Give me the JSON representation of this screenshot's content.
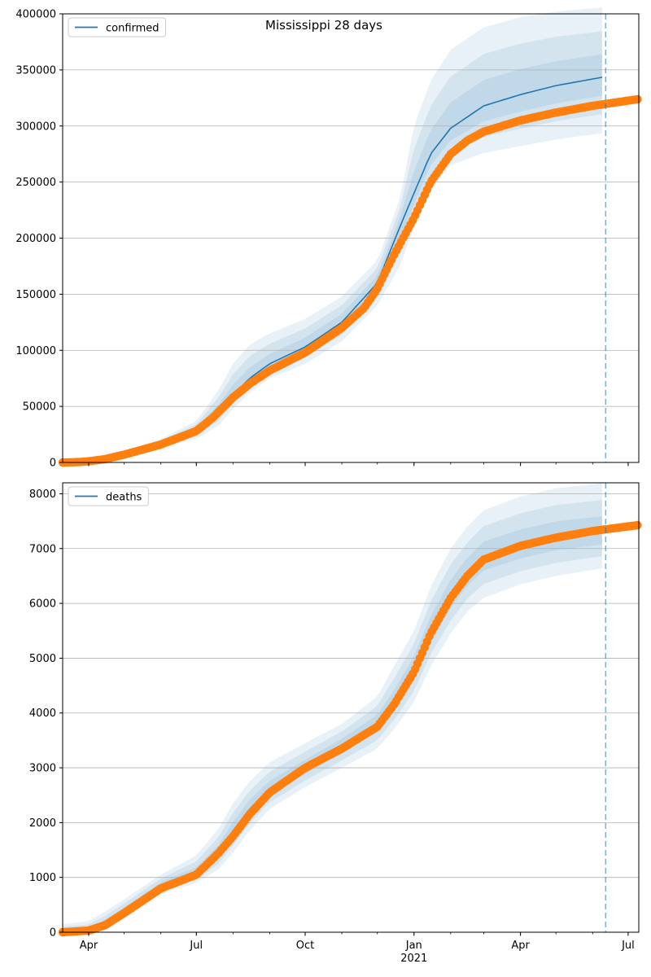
{
  "figure": {
    "title": "Mississippi 28 days"
  },
  "colors": {
    "model": "#1f77b4",
    "observed": "#ff7f0e",
    "grid": "#b0b0b0",
    "band": "#1f77b4"
  },
  "x_axis": {
    "range": [
      "2020-03-10",
      "2021-07-10"
    ],
    "major_ticks": [
      {
        "date": "2020-04-01",
        "label": "Apr",
        "sub": ""
      },
      {
        "date": "2020-07-01",
        "label": "Jul",
        "sub": ""
      },
      {
        "date": "2020-10-01",
        "label": "Oct",
        "sub": ""
      },
      {
        "date": "2021-01-01",
        "label": "Jan",
        "sub": "2021"
      },
      {
        "date": "2021-04-01",
        "label": "Apr",
        "sub": ""
      },
      {
        "date": "2021-07-01",
        "label": "Jul",
        "sub": ""
      }
    ],
    "minor_ticks": [
      "2020-04-01",
      "2020-05-01",
      "2020-06-01",
      "2020-07-01",
      "2020-08-01",
      "2020-09-01",
      "2020-10-01",
      "2020-11-01",
      "2020-12-01",
      "2021-01-01",
      "2021-02-01",
      "2021-03-01",
      "2021-04-01",
      "2021-05-01",
      "2021-06-01",
      "2021-07-01"
    ],
    "forecast_start": "2021-06-12"
  },
  "chart_data": [
    {
      "type": "line",
      "title": "Mississippi 28 days",
      "legend": {
        "label": "confirmed",
        "position": "top-left"
      },
      "ylim": [
        0,
        400000
      ],
      "yticks": [
        0,
        50000,
        100000,
        150000,
        200000,
        250000,
        300000,
        350000,
        400000
      ],
      "grid": "horizontal",
      "series": [
        {
          "name": "confirmed",
          "kind": "model",
          "points": [
            [
              "2020-03-10",
              0
            ],
            [
              "2020-04-01",
              1300
            ],
            [
              "2020-05-01",
              8000
            ],
            [
              "2020-06-01",
              17000
            ],
            [
              "2020-07-01",
              28000
            ],
            [
              "2020-07-20",
              46000
            ],
            [
              "2020-08-01",
              60000
            ],
            [
              "2020-08-15",
              75000
            ],
            [
              "2020-09-01",
              88000
            ],
            [
              "2020-10-01",
              103000
            ],
            [
              "2020-11-01",
              125000
            ],
            [
              "2020-12-01",
              160000
            ],
            [
              "2020-12-20",
              210000
            ],
            [
              "2021-01-01",
              240000
            ],
            [
              "2021-01-15",
              275000
            ],
            [
              "2021-02-01",
              298000
            ],
            [
              "2021-03-01",
              318000
            ],
            [
              "2021-04-01",
              328000
            ],
            [
              "2021-05-01",
              336000
            ],
            [
              "2021-06-12",
              344000
            ]
          ],
          "band_top": [
            [
              "2020-03-10",
              0
            ],
            [
              "2020-04-01",
              1800
            ],
            [
              "2020-05-01",
              10000
            ],
            [
              "2020-06-01",
              21000
            ],
            [
              "2020-07-01",
              37000
            ],
            [
              "2020-07-20",
              65000
            ],
            [
              "2020-08-01",
              88000
            ],
            [
              "2020-08-15",
              105000
            ],
            [
              "2020-09-01",
              115000
            ],
            [
              "2020-10-01",
              128000
            ],
            [
              "2020-11-01",
              148000
            ],
            [
              "2020-12-01",
              180000
            ],
            [
              "2020-12-20",
              235000
            ],
            [
              "2021-01-01",
              300000
            ],
            [
              "2021-01-15",
              340000
            ],
            [
              "2021-02-01",
              368000
            ],
            [
              "2021-03-01",
              388000
            ],
            [
              "2021-04-01",
              397000
            ],
            [
              "2021-05-01",
              402000
            ],
            [
              "2021-06-12",
              406000
            ]
          ],
          "band_bottom": [
            [
              "2020-03-10",
              0
            ],
            [
              "2020-04-01",
              900
            ],
            [
              "2020-05-01",
              6000
            ],
            [
              "2020-06-01",
              13000
            ],
            [
              "2020-07-01",
              21000
            ],
            [
              "2020-07-20",
              33000
            ],
            [
              "2020-08-01",
              48000
            ],
            [
              "2020-08-15",
              62000
            ],
            [
              "2020-09-01",
              75000
            ],
            [
              "2020-10-01",
              88000
            ],
            [
              "2020-11-01",
              108000
            ],
            [
              "2020-12-01",
              140000
            ],
            [
              "2020-12-20",
              175000
            ],
            [
              "2021-01-01",
              210000
            ],
            [
              "2021-01-15",
              245000
            ],
            [
              "2021-02-01",
              265000
            ],
            [
              "2021-03-01",
              276000
            ],
            [
              "2021-04-01",
              282000
            ],
            [
              "2021-05-01",
              288000
            ],
            [
              "2021-06-12",
              294000
            ]
          ]
        },
        {
          "name": "observed",
          "kind": "observed",
          "points": [
            [
              "2020-03-10",
              0
            ],
            [
              "2020-03-20",
              200
            ],
            [
              "2020-04-01",
              1000
            ],
            [
              "2020-04-15",
              3000
            ],
            [
              "2020-05-01",
              7000
            ],
            [
              "2020-06-01",
              16000
            ],
            [
              "2020-07-01",
              28000
            ],
            [
              "2020-07-15",
              40000
            ],
            [
              "2020-08-01",
              58000
            ],
            [
              "2020-08-15",
              70000
            ],
            [
              "2020-09-01",
              82000
            ],
            [
              "2020-10-01",
              98000
            ],
            [
              "2020-11-01",
              120000
            ],
            [
              "2020-11-20",
              138000
            ],
            [
              "2020-12-01",
              155000
            ],
            [
              "2020-12-15",
              185000
            ],
            [
              "2021-01-01",
              218000
            ],
            [
              "2021-01-15",
              250000
            ],
            [
              "2021-02-01",
              275000
            ],
            [
              "2021-02-15",
              287000
            ],
            [
              "2021-03-01",
              295000
            ],
            [
              "2021-04-01",
              305000
            ],
            [
              "2021-05-01",
              312000
            ],
            [
              "2021-06-01",
              318000
            ],
            [
              "2021-07-10",
              324000
            ]
          ]
        }
      ]
    },
    {
      "type": "line",
      "legend": {
        "label": "deaths",
        "position": "top-left"
      },
      "ylim": [
        0,
        8200
      ],
      "yticks": [
        0,
        1000,
        2000,
        3000,
        4000,
        5000,
        6000,
        7000,
        8000
      ],
      "grid": "horizontal",
      "series": [
        {
          "name": "deaths",
          "kind": "model",
          "points": [
            [
              "2020-03-10",
              0
            ],
            [
              "2020-04-01",
              30
            ],
            [
              "2020-04-15",
              150
            ],
            [
              "2020-05-01",
              380
            ],
            [
              "2020-06-01",
              850
            ],
            [
              "2020-07-01",
              1080
            ],
            [
              "2020-07-20",
              1450
            ],
            [
              "2020-08-01",
              1850
            ],
            [
              "2020-08-15",
              2250
            ],
            [
              "2020-09-01",
              2600
            ],
            [
              "2020-10-01",
              3000
            ],
            [
              "2020-11-01",
              3400
            ],
            [
              "2020-12-01",
              3800
            ],
            [
              "2020-12-15",
              4200
            ],
            [
              "2021-01-01",
              4800
            ],
            [
              "2021-01-15",
              5500
            ],
            [
              "2021-02-01",
              6150
            ],
            [
              "2021-02-15",
              6550
            ],
            [
              "2021-03-01",
              6850
            ],
            [
              "2021-04-01",
              7050
            ],
            [
              "2021-05-01",
              7200
            ],
            [
              "2021-06-12",
              7300
            ]
          ],
          "band_top": [
            [
              "2020-03-10",
              150
            ],
            [
              "2020-04-01",
              200
            ],
            [
              "2020-04-15",
              380
            ],
            [
              "2020-05-01",
              600
            ],
            [
              "2020-06-01",
              1050
            ],
            [
              "2020-07-01",
              1400
            ],
            [
              "2020-07-20",
              1900
            ],
            [
              "2020-08-01",
              2350
            ],
            [
              "2020-08-15",
              2750
            ],
            [
              "2020-09-01",
              3100
            ],
            [
              "2020-10-01",
              3450
            ],
            [
              "2020-11-01",
              3800
            ],
            [
              "2020-12-01",
              4300
            ],
            [
              "2020-12-15",
              4850
            ],
            [
              "2021-01-01",
              5500
            ],
            [
              "2021-01-15",
              6300
            ],
            [
              "2021-02-01",
              7000
            ],
            [
              "2021-02-15",
              7400
            ],
            [
              "2021-03-01",
              7700
            ],
            [
              "2021-04-01",
              7950
            ],
            [
              "2021-05-01",
              8100
            ],
            [
              "2021-06-12",
              8200
            ]
          ],
          "band_bottom": [
            [
              "2020-03-10",
              0
            ],
            [
              "2020-04-01",
              0
            ],
            [
              "2020-04-15",
              60
            ],
            [
              "2020-05-01",
              250
            ],
            [
              "2020-06-01",
              700
            ],
            [
              "2020-07-01",
              900
            ],
            [
              "2020-07-20",
              1150
            ],
            [
              "2020-08-01",
              1450
            ],
            [
              "2020-08-15",
              1850
            ],
            [
              "2020-09-01",
              2250
            ],
            [
              "2020-10-01",
              2650
            ],
            [
              "2020-11-01",
              3000
            ],
            [
              "2020-12-01",
              3350
            ],
            [
              "2020-12-15",
              3700
            ],
            [
              "2021-01-01",
              4200
            ],
            [
              "2021-01-15",
              4850
            ],
            [
              "2021-02-01",
              5450
            ],
            [
              "2021-02-15",
              5850
            ],
            [
              "2021-03-01",
              6100
            ],
            [
              "2021-04-01",
              6350
            ],
            [
              "2021-05-01",
              6500
            ],
            [
              "2021-06-12",
              6650
            ]
          ]
        },
        {
          "name": "observed",
          "kind": "observed",
          "points": [
            [
              "2020-03-10",
              0
            ],
            [
              "2020-04-01",
              30
            ],
            [
              "2020-04-15",
              130
            ],
            [
              "2020-05-01",
              350
            ],
            [
              "2020-06-01",
              800
            ],
            [
              "2020-07-01",
              1050
            ],
            [
              "2020-07-20",
              1450
            ],
            [
              "2020-08-01",
              1750
            ],
            [
              "2020-08-15",
              2150
            ],
            [
              "2020-09-01",
              2550
            ],
            [
              "2020-10-01",
              3000
            ],
            [
              "2020-11-01",
              3350
            ],
            [
              "2020-12-01",
              3750
            ],
            [
              "2020-12-15",
              4150
            ],
            [
              "2021-01-01",
              4750
            ],
            [
              "2021-01-15",
              5450
            ],
            [
              "2021-02-01",
              6100
            ],
            [
              "2021-02-15",
              6500
            ],
            [
              "2021-03-01",
              6800
            ],
            [
              "2021-04-01",
              7050
            ],
            [
              "2021-05-01",
              7200
            ],
            [
              "2021-06-01",
              7320
            ],
            [
              "2021-07-10",
              7430
            ]
          ]
        }
      ]
    }
  ]
}
